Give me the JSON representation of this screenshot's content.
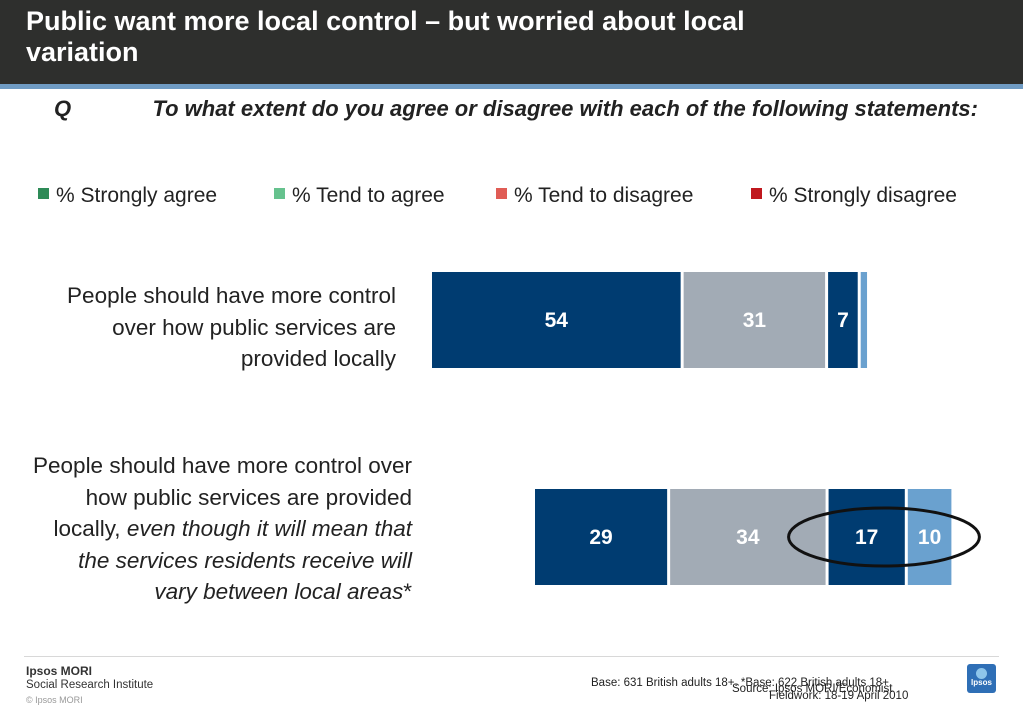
{
  "header": {
    "title": "Public want more local control – but worried about local variation"
  },
  "question": {
    "label": "Q",
    "text": "To what extent do you agree or disagree with each of the following statements:"
  },
  "legend": [
    {
      "label": "% Strongly agree",
      "color": "#2e8b57"
    },
    {
      "label": "% Tend to agree",
      "color": "#66c28e"
    },
    {
      "label": "% Tend to disagree",
      "color": "#e05c55"
    },
    {
      "label": "% Strongly disagree",
      "color": "#c0181e"
    }
  ],
  "rows": [
    {
      "text": "People should have more control over how public services are provided locally",
      "text_italic": "",
      "text_suffix": ""
    },
    {
      "text": "People should have more control over how public services are provided locally, ",
      "text_italic": "even though it will mean that the services residents receive will vary between local areas",
      "text_suffix": "*"
    }
  ],
  "chart_data": {
    "type": "bar",
    "orientation": "horizontal",
    "stacked": true,
    "categories": [
      "People should have more control over how public services are provided locally",
      "People should have more control over how public services are provided locally, even though it will mean that the services residents receive will vary between local areas*"
    ],
    "series": [
      {
        "name": "% Strongly agree",
        "values": [
          54,
          29
        ],
        "color": "#003c71",
        "labels": [
          "54",
          "29"
        ]
      },
      {
        "name": "% Tend to agree",
        "values": [
          31,
          34
        ],
        "color": "#a2abb5",
        "labels": [
          "31",
          "34"
        ]
      },
      {
        "name": "% Tend to disagree",
        "values": [
          7,
          17
        ],
        "color": "#003c71",
        "labels": [
          "7",
          "17"
        ]
      },
      {
        "name": "% Strongly disagree",
        "values": [
          2,
          10
        ],
        "color": "#6aa1cf",
        "labels": [
          "",
          "10"
        ]
      }
    ],
    "highlight": {
      "row": 1,
      "series": [
        2,
        3
      ],
      "shape": "ellipse"
    }
  },
  "footer": {
    "brand_line1": "Ipsos MORI",
    "brand_line2": "Social Research Institute",
    "copyright": "© Ipsos MORI",
    "base": "Base: 631 British adults 18+. *Base: 622 British adults 18+",
    "source": "Source: Ipsos MORI/Economist",
    "fieldwork": "Fieldwork: 18-19 April 2010",
    "logo_text": "Ipsos"
  }
}
